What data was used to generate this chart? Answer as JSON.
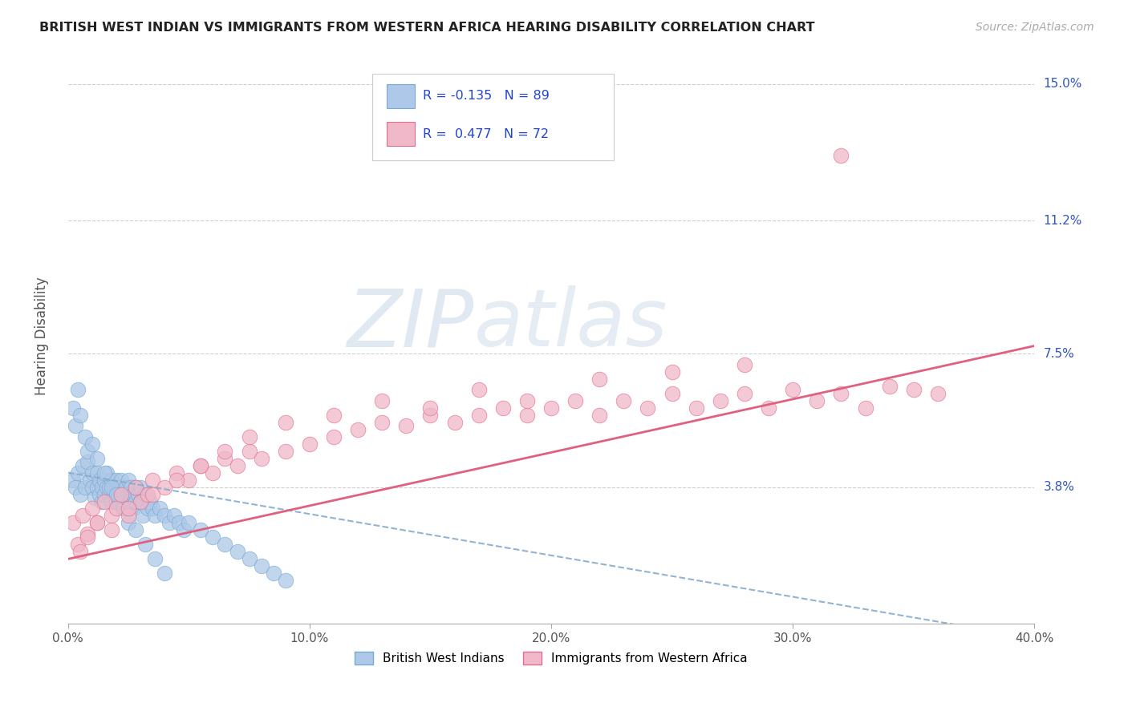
{
  "title": "BRITISH WEST INDIAN VS IMMIGRANTS FROM WESTERN AFRICA HEARING DISABILITY CORRELATION CHART",
  "source": "Source: ZipAtlas.com",
  "ylabel": "Hearing Disability",
  "xlim": [
    0.0,
    0.4
  ],
  "ylim": [
    0.0,
    0.16
  ],
  "yticks": [
    0.038,
    0.075,
    0.112,
    0.15
  ],
  "ytick_labels": [
    "3.8%",
    "7.5%",
    "11.2%",
    "15.0%"
  ],
  "xticks": [
    0.0,
    0.1,
    0.2,
    0.3,
    0.4
  ],
  "xtick_labels": [
    "0.0%",
    "10.0%",
    "20.0%",
    "30.0%",
    "40.0%"
  ],
  "series1_name": "British West Indians",
  "series1_color": "#adc8e8",
  "series1_edge_color": "#7aaad0",
  "series1_R": -0.135,
  "series1_N": 89,
  "series1_line_color": "#88aacc",
  "series2_name": "Immigrants from Western Africa",
  "series2_color": "#f0b8c8",
  "series2_edge_color": "#e07090",
  "series2_R": 0.477,
  "series2_N": 72,
  "series2_line_color": "#e06080",
  "watermark_zip": "ZIP",
  "watermark_atlas": "atlas",
  "background_color": "#ffffff",
  "grid_color": "#bbbbbb",
  "title_color": "#222222",
  "right_tick_color": "#3355bb",
  "legend_R_color": "#2244cc",
  "series1_x": [
    0.002,
    0.003,
    0.004,
    0.005,
    0.006,
    0.007,
    0.008,
    0.009,
    0.01,
    0.01,
    0.011,
    0.012,
    0.012,
    0.013,
    0.013,
    0.014,
    0.014,
    0.015,
    0.015,
    0.016,
    0.016,
    0.017,
    0.017,
    0.018,
    0.018,
    0.019,
    0.019,
    0.02,
    0.02,
    0.02,
    0.021,
    0.021,
    0.022,
    0.022,
    0.022,
    0.023,
    0.023,
    0.024,
    0.024,
    0.025,
    0.025,
    0.026,
    0.026,
    0.027,
    0.027,
    0.028,
    0.028,
    0.029,
    0.03,
    0.03,
    0.031,
    0.031,
    0.032,
    0.033,
    0.034,
    0.035,
    0.036,
    0.038,
    0.04,
    0.042,
    0.044,
    0.046,
    0.048,
    0.05,
    0.055,
    0.06,
    0.065,
    0.07,
    0.075,
    0.08,
    0.085,
    0.09,
    0.002,
    0.003,
    0.004,
    0.005,
    0.007,
    0.008,
    0.01,
    0.012,
    0.015,
    0.018,
    0.02,
    0.023,
    0.025,
    0.028,
    0.032,
    0.036,
    0.04
  ],
  "series1_y": [
    0.04,
    0.038,
    0.042,
    0.036,
    0.044,
    0.038,
    0.045,
    0.04,
    0.038,
    0.042,
    0.035,
    0.038,
    0.042,
    0.036,
    0.04,
    0.038,
    0.034,
    0.04,
    0.036,
    0.038,
    0.042,
    0.036,
    0.038,
    0.034,
    0.04,
    0.036,
    0.038,
    0.038,
    0.034,
    0.04,
    0.036,
    0.038,
    0.034,
    0.038,
    0.04,
    0.036,
    0.032,
    0.038,
    0.034,
    0.036,
    0.04,
    0.034,
    0.038,
    0.036,
    0.032,
    0.038,
    0.034,
    0.036,
    0.034,
    0.038,
    0.034,
    0.03,
    0.036,
    0.032,
    0.034,
    0.032,
    0.03,
    0.032,
    0.03,
    0.028,
    0.03,
    0.028,
    0.026,
    0.028,
    0.026,
    0.024,
    0.022,
    0.02,
    0.018,
    0.016,
    0.014,
    0.012,
    0.06,
    0.055,
    0.065,
    0.058,
    0.052,
    0.048,
    0.05,
    0.046,
    0.042,
    0.038,
    0.036,
    0.032,
    0.028,
    0.026,
    0.022,
    0.018,
    0.014
  ],
  "series2_x": [
    0.002,
    0.004,
    0.006,
    0.008,
    0.01,
    0.012,
    0.015,
    0.018,
    0.02,
    0.022,
    0.025,
    0.028,
    0.03,
    0.033,
    0.035,
    0.04,
    0.045,
    0.05,
    0.055,
    0.06,
    0.065,
    0.07,
    0.075,
    0.08,
    0.09,
    0.1,
    0.11,
    0.12,
    0.13,
    0.14,
    0.15,
    0.16,
    0.17,
    0.18,
    0.19,
    0.2,
    0.21,
    0.22,
    0.23,
    0.24,
    0.25,
    0.26,
    0.27,
    0.28,
    0.29,
    0.3,
    0.31,
    0.32,
    0.33,
    0.34,
    0.35,
    0.36,
    0.005,
    0.008,
    0.012,
    0.018,
    0.025,
    0.035,
    0.045,
    0.055,
    0.065,
    0.075,
    0.09,
    0.11,
    0.13,
    0.15,
    0.17,
    0.19,
    0.22,
    0.25,
    0.28,
    0.32
  ],
  "series2_y": [
    0.028,
    0.022,
    0.03,
    0.025,
    0.032,
    0.028,
    0.034,
    0.03,
    0.032,
    0.036,
    0.03,
    0.038,
    0.034,
    0.036,
    0.04,
    0.038,
    0.042,
    0.04,
    0.044,
    0.042,
    0.046,
    0.044,
    0.048,
    0.046,
    0.048,
    0.05,
    0.052,
    0.054,
    0.056,
    0.055,
    0.058,
    0.056,
    0.058,
    0.06,
    0.058,
    0.06,
    0.062,
    0.058,
    0.062,
    0.06,
    0.064,
    0.06,
    0.062,
    0.064,
    0.06,
    0.065,
    0.062,
    0.064,
    0.06,
    0.066,
    0.065,
    0.064,
    0.02,
    0.024,
    0.028,
    0.026,
    0.032,
    0.036,
    0.04,
    0.044,
    0.048,
    0.052,
    0.056,
    0.058,
    0.062,
    0.06,
    0.065,
    0.062,
    0.068,
    0.07,
    0.072,
    0.13
  ]
}
